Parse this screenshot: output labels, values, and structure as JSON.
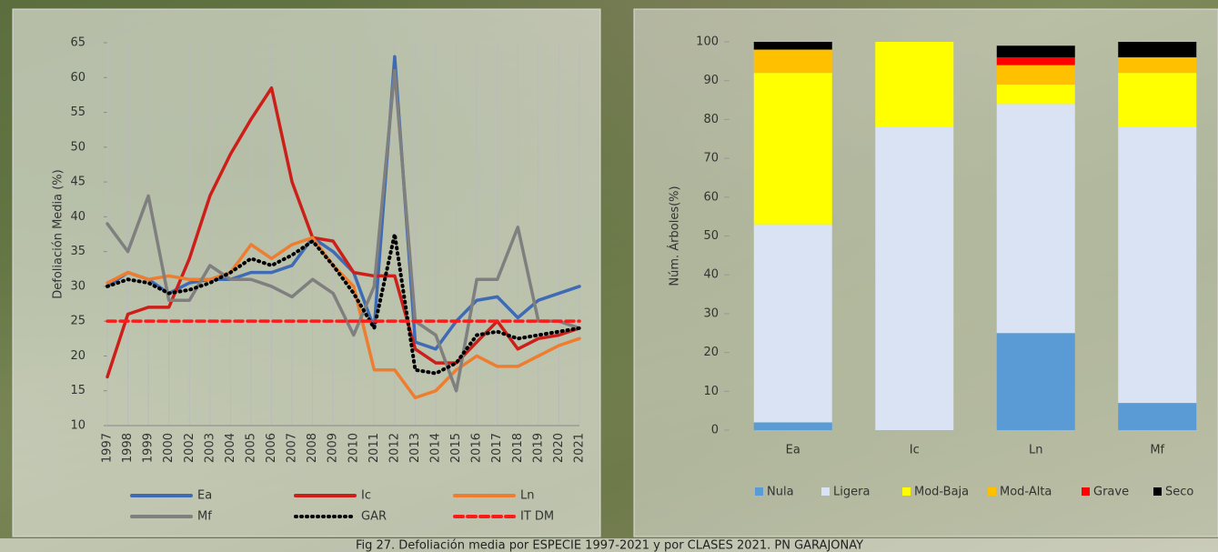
{
  "chart_data": [
    {
      "type": "line",
      "y_label": "Defoliación Media (%)",
      "categories": [
        "1997",
        "1998",
        "1999",
        "2000",
        "2002",
        "2003",
        "2004",
        "2005",
        "2006",
        "2007",
        "2008",
        "2009",
        "2010",
        "2011",
        "2012",
        "2013",
        "2014",
        "2015",
        "2016",
        "2017",
        "2018",
        "2019",
        "2020",
        "2021"
      ],
      "ylim": [
        10,
        65
      ],
      "yticks": [
        10,
        15,
        20,
        25,
        30,
        35,
        40,
        45,
        50,
        55,
        60,
        65
      ],
      "grid": "x",
      "series": [
        {
          "name": "Ea",
          "color": "#3f6bb5",
          "dash": "solid",
          "values": [
            30,
            32,
            31,
            29,
            30.5,
            31,
            31,
            32,
            32,
            33,
            37,
            35,
            32,
            24,
            63,
            22,
            21,
            25,
            28,
            28.5,
            25.5,
            28,
            29,
            30
          ]
        },
        {
          "name": "Ic",
          "color": "#cc1f1a",
          "dash": "solid",
          "values": [
            17,
            26,
            27,
            27,
            34,
            43,
            49,
            54,
            58.5,
            45,
            37,
            36.5,
            32,
            31.5,
            31.5,
            21,
            19,
            19,
            22,
            25,
            21,
            22.5,
            23,
            24
          ]
        },
        {
          "name": "Ln",
          "color": "#ee7d2f",
          "dash": "solid",
          "values": [
            30.5,
            32,
            31,
            31.5,
            31,
            31,
            32,
            36,
            34,
            36,
            37,
            33,
            30,
            18,
            18,
            14,
            15,
            18,
            20,
            18.5,
            18.5,
            20,
            21.5,
            22.5
          ]
        },
        {
          "name": "Mf",
          "color": "#7f7f7f",
          "dash": "solid",
          "values": [
            39,
            35,
            43,
            28,
            28,
            33,
            31,
            31,
            30,
            28.5,
            31,
            29,
            23,
            30,
            61,
            25,
            23,
            15,
            31,
            31,
            38.5,
            25,
            25,
            24
          ]
        },
        {
          "name": "GAR",
          "color": "#000000",
          "dash": "dotted",
          "values": [
            30,
            31,
            30.5,
            29,
            29.5,
            30.5,
            32,
            34,
            33,
            34.5,
            36.5,
            33,
            29,
            24,
            37.5,
            18,
            17.5,
            19,
            23,
            23.5,
            22.5,
            23,
            23.5,
            24
          ]
        },
        {
          "name": "IT DM",
          "color": "#ff1a1a",
          "dash": "dashed",
          "values": [
            25,
            25,
            25,
            25,
            25,
            25,
            25,
            25,
            25,
            25,
            25,
            25,
            25,
            25,
            25,
            25,
            25,
            25,
            25,
            25,
            25,
            25,
            25,
            25
          ]
        }
      ]
    },
    {
      "type": "stacked-bar",
      "y_label": "Núm. Árboles(%)",
      "categories": [
        "Ea",
        "Ic",
        "Ln",
        "Mf"
      ],
      "ylim": [
        0,
        100
      ],
      "yticks": [
        0,
        10,
        20,
        30,
        40,
        50,
        60,
        70,
        80,
        90,
        100
      ],
      "grid": "none",
      "series": [
        {
          "name": "Nula",
          "color": "#5b9bd5",
          "values": [
            2,
            0,
            25,
            7
          ]
        },
        {
          "name": "Ligera",
          "color": "#dae3f3",
          "values": [
            51,
            78,
            59,
            71
          ]
        },
        {
          "name": "Mod-Baja",
          "color": "#ffff00",
          "values": [
            39,
            22,
            5,
            14
          ]
        },
        {
          "name": "Mod-Alta",
          "color": "#ffc000",
          "values": [
            6,
            0,
            5,
            4
          ]
        },
        {
          "name": "Grave",
          "color": "#ff0000",
          "values": [
            0,
            0,
            2,
            0
          ]
        },
        {
          "name": "Seco",
          "color": "#000000",
          "values": [
            2,
            0,
            3,
            4
          ]
        }
      ]
    }
  ],
  "caption": "Fig 27. Defoliación media por ESPECIE 1997-2021 y por CLASES 2021. PN GARAJONAY"
}
